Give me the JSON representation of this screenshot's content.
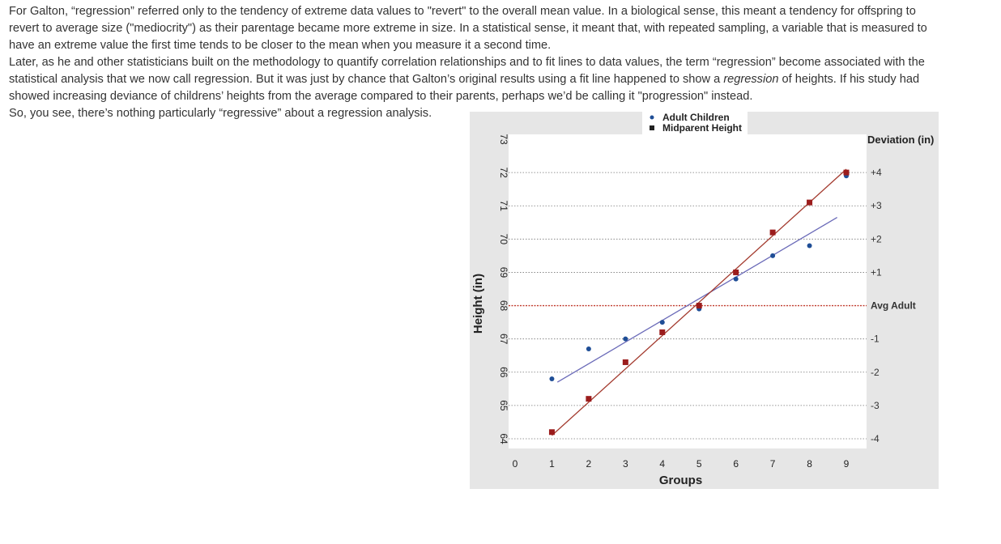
{
  "paragraphs": [
    {
      "segments": [
        {
          "text": "For Galton, “regression” referred only to the tendency of extreme data values to \"revert\" to the overall mean value. In a biological sense, this meant a tendency for offspring to revert to average size (\"mediocrity\") as their parentage became more extreme in size. In a statistical sense, it meant that, with repeated sampling, a variable that is measured to have an extreme value the first time tends to be closer to the mean when you measure it a second time."
        }
      ]
    },
    {
      "segments": [
        {
          "text": "Later, as he and other statisticians built on the methodology to quantify correlation relationships and to fit lines to data values, the term “regression” become associated with the statistical analysis that we now call regression. But it was just by chance that Galton’s original results using a fit line happened to show a "
        },
        {
          "text": "regression",
          "italic": true
        },
        {
          "text": " of heights. If his study had showed increasing deviance of childrens’ heights from the average compared to their parents, perhaps we’d be calling it \"progression\" instead."
        }
      ]
    },
    {
      "segments": [
        {
          "text": "So, you see, there’s nothing particularly “regressive” about a regression analysis."
        }
      ]
    }
  ],
  "chart_data": {
    "type": "scatter",
    "xlabel": "Groups",
    "ylabel": "Height (in)",
    "xlim": [
      0,
      9
    ],
    "ylim": [
      64,
      73
    ],
    "x_ticks": [
      "0",
      "1",
      "2",
      "3",
      "4",
      "5",
      "6",
      "7",
      "8",
      "9"
    ],
    "y_ticks": [
      "64",
      "65",
      "66",
      "67",
      "68",
      "69",
      "70",
      "71",
      "72",
      "73"
    ],
    "right_axis_title": "Deviation (in)",
    "deviation_labels": [
      {
        "y": 72,
        "label": "+4"
      },
      {
        "y": 71,
        "label": "+3"
      },
      {
        "y": 70,
        "label": "+2"
      },
      {
        "y": 69,
        "label": "+1"
      },
      {
        "y": 68,
        "label": "Avg Adult",
        "highlight": true
      },
      {
        "y": 67,
        "label": "-1"
      },
      {
        "y": 66,
        "label": "-2"
      },
      {
        "y": 65,
        "label": "-3"
      },
      {
        "y": 64,
        "label": "-4"
      }
    ],
    "legend": [
      "Adult Children",
      "Midparent Height"
    ],
    "series": [
      {
        "name": "Adult Children",
        "marker": "circle",
        "color": "#1f4e96",
        "x": [
          1,
          2,
          3,
          4,
          5,
          6,
          7,
          8,
          9
        ],
        "y": [
          65.8,
          66.7,
          67.0,
          67.5,
          67.9,
          68.8,
          69.5,
          69.8,
          71.9
        ],
        "fit": {
          "x": [
            1.15,
            8.75
          ],
          "y": [
            65.7,
            70.65
          ],
          "color": "#6a6ab8"
        }
      },
      {
        "name": "Midparent Height",
        "marker": "square",
        "color": "#9b1c1c",
        "x": [
          1,
          2,
          3,
          4,
          5,
          6,
          7,
          8,
          9
        ],
        "y": [
          64.2,
          65.2,
          66.3,
          67.2,
          68.0,
          69.0,
          70.2,
          71.1,
          72.0
        ],
        "fit": {
          "x": [
            1.0,
            9.0
          ],
          "y": [
            64.1,
            72.1
          ],
          "color": "#a33a2e"
        }
      }
    ],
    "reference_line": {
      "y": 68,
      "color": "#c0392b"
    },
    "colors": {
      "background": "#e6e6e6",
      "plot": "#ffffff",
      "highlight": "#c0392b"
    }
  }
}
